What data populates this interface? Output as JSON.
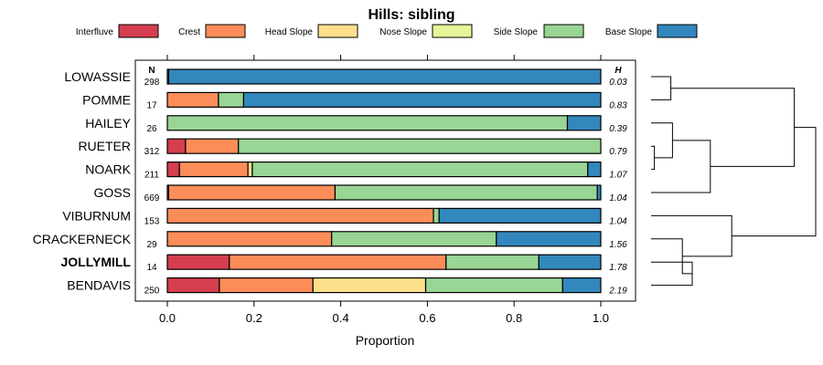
{
  "chart_data": {
    "type": "stacked-bar",
    "title": "Hills: sibling",
    "xlabel": "Proportion",
    "xlim": [
      0,
      1
    ],
    "xticks": [
      "0.0",
      "0.2",
      "0.4",
      "0.6",
      "0.8",
      "1.0"
    ],
    "n_header": "N",
    "h_header": "H",
    "highlight": "JOLLYMILL",
    "legend": [
      {
        "name": "Interfluve",
        "color": "#d53e4f"
      },
      {
        "name": "Crest",
        "color": "#fc8d59"
      },
      {
        "name": "Head Slope",
        "color": "#fee08b"
      },
      {
        "name": "Nose Slope",
        "color": "#e6f598"
      },
      {
        "name": "Side Slope",
        "color": "#99d594"
      },
      {
        "name": "Base Slope",
        "color": "#3288bd"
      }
    ],
    "rows": [
      {
        "label": "LOWASSIE",
        "n": "298",
        "h": "0.03",
        "values": [
          0.0,
          0.0,
          0.0,
          0.0,
          0.003,
          0.997
        ]
      },
      {
        "label": "POMME",
        "n": "17",
        "h": "0.83",
        "values": [
          0.0,
          0.118,
          0.0,
          0.0,
          0.058,
          0.824
        ]
      },
      {
        "label": "HAILEY",
        "n": "26",
        "h": "0.39",
        "values": [
          0.0,
          0.0,
          0.0,
          0.0,
          0.923,
          0.077
        ]
      },
      {
        "label": "RUETER",
        "n": "312",
        "h": "0.79",
        "values": [
          0.042,
          0.122,
          0.0,
          0.0,
          0.836,
          0.0
        ]
      },
      {
        "label": "NOARK",
        "n": "211",
        "h": "1.07",
        "values": [
          0.028,
          0.158,
          0.01,
          0.0,
          0.774,
          0.03
        ]
      },
      {
        "label": "GOSS",
        "n": "669",
        "h": "1.04",
        "values": [
          0.003,
          0.384,
          0.0,
          0.0,
          0.605,
          0.008
        ]
      },
      {
        "label": "VIBURNUM",
        "n": "153",
        "h": "1.04",
        "values": [
          0.0,
          0.614,
          0.0,
          0.0,
          0.013,
          0.373
        ]
      },
      {
        "label": "CRACKERNECK",
        "n": "29",
        "h": "1.56",
        "values": [
          0.0,
          0.379,
          0.0,
          0.0,
          0.38,
          0.241
        ]
      },
      {
        "label": "JOLLYMILL",
        "n": "14",
        "h": "1.78",
        "values": [
          0.143,
          0.5,
          0.0,
          0.0,
          0.214,
          0.143
        ]
      },
      {
        "label": "BENDAVIS",
        "n": "250",
        "h": "2.19",
        "values": [
          0.12,
          0.216,
          0.26,
          0.0,
          0.316,
          0.088
        ]
      }
    ],
    "dendrogram": {
      "order": [
        "LOWASSIE",
        "POMME",
        "HAILEY",
        "RUETER",
        "NOARK",
        "GOSS",
        "VIBURNUM",
        "CRACKERNECK",
        "JOLLYMILL",
        "BENDAVIS"
      ],
      "merges": [
        {
          "a": "POMME",
          "b": "LOWASSIE",
          "height": 0.12
        },
        {
          "a": "RUETER",
          "b": "NOARK",
          "height": 0.02
        },
        {
          "a": "HAILEY",
          "b": "m1",
          "height": 0.13
        },
        {
          "a": "m2",
          "b": "GOSS",
          "height": 0.36
        },
        {
          "a": "JOLLYMILL",
          "b": "BENDAVIS",
          "height": 0.25
        },
        {
          "a": "CRACKERNECK",
          "b": "m4",
          "height": 0.19
        },
        {
          "a": "VIBURNUM",
          "b": "m5",
          "height": 0.49
        },
        {
          "a": "m0",
          "b": "m3",
          "height": 0.87
        },
        {
          "a": "m7",
          "b": "m6",
          "height": 1.0
        }
      ]
    }
  }
}
